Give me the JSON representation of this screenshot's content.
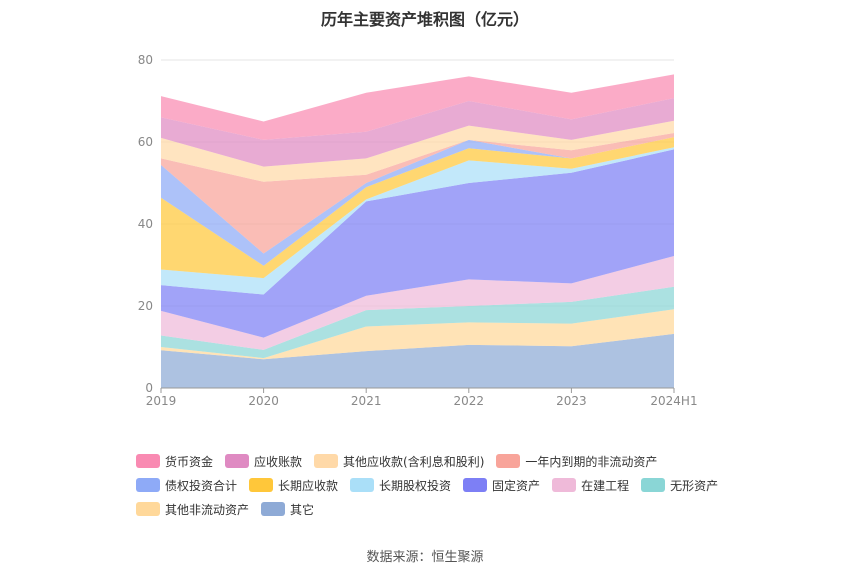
{
  "source": "数据来源：恒生聚源",
  "chart_data": {
    "type": "area",
    "stacked": true,
    "title": "历年主要资产堆积图（亿元）",
    "categories": [
      "2019",
      "2020",
      "2021",
      "2022",
      "2023",
      "2024H1"
    ],
    "ylim": [
      0,
      80
    ],
    "yticks": [
      "0",
      "20",
      "40",
      "60",
      "80"
    ],
    "grid": true,
    "legend_position": "bottom",
    "series": [
      {
        "name": "其它",
        "color": "#8eaad6",
        "values": [
          9.2,
          7.0,
          9.0,
          10.5,
          10.2,
          13.2
        ]
      },
      {
        "name": "其他非流动资产",
        "color": "#ffd89a",
        "values": [
          0.8,
          0.3,
          6.0,
          5.5,
          5.5,
          6.0
        ]
      },
      {
        "name": "无形资产",
        "color": "#8ad6d6",
        "values": [
          2.8,
          2.0,
          4.0,
          4.0,
          5.3,
          5.5
        ]
      },
      {
        "name": "在建工程",
        "color": "#efbad9",
        "values": [
          6.0,
          3.0,
          3.5,
          6.5,
          4.5,
          7.5
        ]
      },
      {
        "name": "固定资产",
        "color": "#7d7ff5",
        "values": [
          6.3,
          10.5,
          23.0,
          23.5,
          27.0,
          26.0
        ]
      },
      {
        "name": "长期股权投资",
        "color": "#aadff8",
        "values": [
          3.8,
          4.0,
          0.5,
          5.5,
          1.0,
          0.5
        ]
      },
      {
        "name": "长期应收款",
        "color": "#ffc73a",
        "values": [
          17.5,
          3.0,
          3.0,
          3.0,
          2.5,
          2.5
        ]
      },
      {
        "name": "债权投资合计",
        "color": "#8eaaf7",
        "values": [
          8.0,
          3.0,
          1.0,
          2.0,
          0.0,
          0.0
        ]
      },
      {
        "name": "一年内到期的非流动资产",
        "color": "#f8a49a",
        "values": [
          1.6,
          17.5,
          2.0,
          0.0,
          2.0,
          1.0
        ]
      },
      {
        "name": "其他应收款(含利息和股利)",
        "color": "#ffd9a8",
        "values": [
          5.0,
          3.7,
          4.0,
          3.5,
          2.5,
          3.0
        ]
      },
      {
        "name": "应收账款",
        "color": "#df8ac2",
        "values": [
          5.0,
          6.5,
          6.5,
          6.0,
          5.0,
          5.5
        ]
      },
      {
        "name": "货币资金",
        "color": "#f98ab2",
        "values": [
          5.2,
          4.5,
          9.5,
          6.0,
          6.5,
          5.8
        ]
      }
    ],
    "legend_order": [
      "货币资金",
      "应收账款",
      "其他应收款(含利息和股利)",
      "一年内到期的非流动资产",
      "债权投资合计",
      "长期应收款",
      "长期股权投资",
      "固定资产",
      "在建工程",
      "无形资产",
      "其他非流动资产",
      "其它"
    ]
  }
}
